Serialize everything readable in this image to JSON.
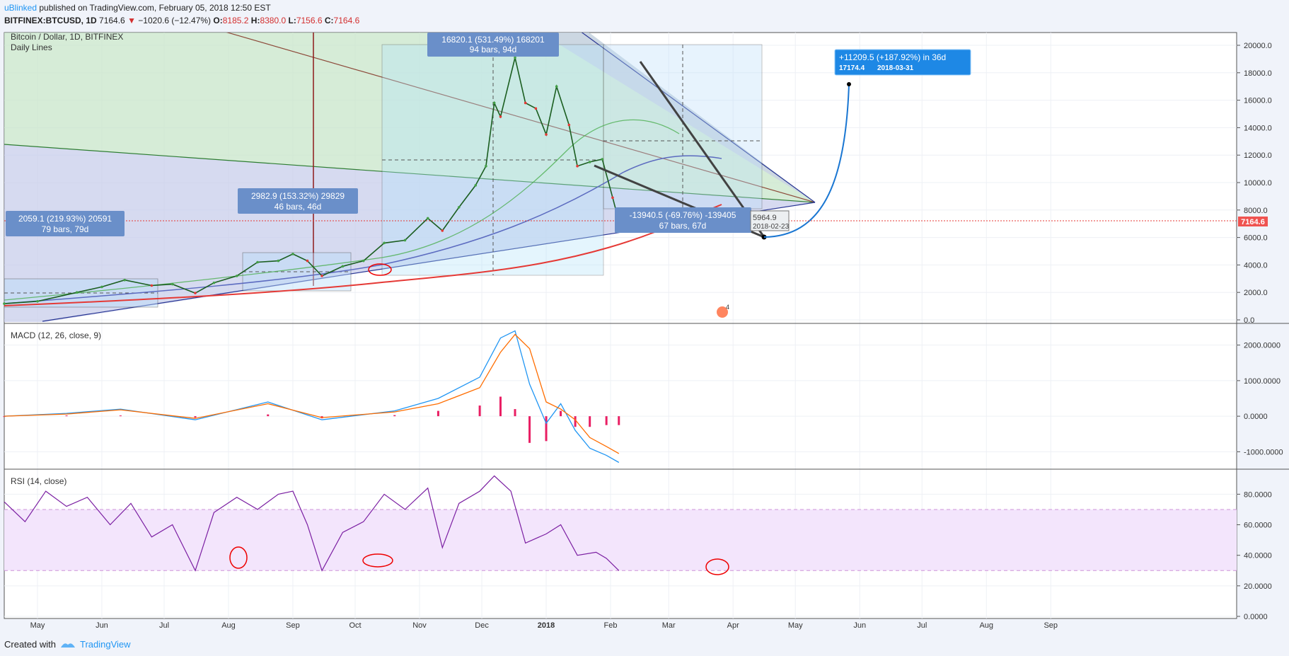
{
  "header": {
    "user": "uBlinked",
    "published": "published on TradingView.com, February 05, 2018 12:50 EST",
    "symbol": "BITFINEX:BTCUSD, 1D",
    "last": "7164.6",
    "arrow": "▼",
    "change": "−1020.6 (−12.47%)",
    "o_label": "O:",
    "o": "8185.2",
    "h_label": "H:",
    "h": "8380.0",
    "l_label": "L:",
    "l": "7156.6",
    "c_label": "C:",
    "c": "7164.6"
  },
  "legend": {
    "title": "Bitcoin / Dollar, 1D, BITFINEX",
    "subtitle": "Daily Lines"
  },
  "footer": {
    "created_with": "Created with",
    "brand": "TradingView"
  },
  "colors": {
    "price_line": "#e53935",
    "macd": "#2196f3",
    "signal": "#ff6d00",
    "hist": "#e91e63",
    "rsi": "#7b1fa2",
    "rsi_band": "#f3e5fc",
    "fan_green": "#c8e6c9",
    "fan_blue": "#c5cae9",
    "label_box": "#6a8fc9",
    "projection": "#1976d2"
  },
  "chart_data": [
    {
      "type": "line",
      "name": "price",
      "ylim": [
        0,
        20000
      ],
      "y_ticks": [
        "20000.0",
        "18000.0",
        "16000.0",
        "14000.0",
        "12000.0",
        "10000.0",
        "8000.0",
        "6000.0",
        "4000.0",
        "2000.0",
        "0.0"
      ],
      "x_ticks": [
        "May",
        "Jun",
        "Jul",
        "Aug",
        "Sep",
        "Oct",
        "Nov",
        "Dec",
        "2018",
        "Feb",
        "Mar",
        "Apr",
        "May",
        "Jun",
        "Jul",
        "Aug",
        "Sep"
      ],
      "price_axis_label": "7164.6",
      "x": [
        "2017-04-15",
        "2017-05-01",
        "2017-05-20",
        "2017-06-01",
        "2017-06-12",
        "2017-06-25",
        "2017-07-05",
        "2017-07-16",
        "2017-07-25",
        "2017-08-05",
        "2017-08-15",
        "2017-08-25",
        "2017-09-01",
        "2017-09-08",
        "2017-09-15",
        "2017-09-25",
        "2017-10-05",
        "2017-10-15",
        "2017-10-25",
        "2017-11-05",
        "2017-11-12",
        "2017-11-20",
        "2017-11-28",
        "2017-12-03",
        "2017-12-07",
        "2017-12-10",
        "2017-12-17",
        "2017-12-22",
        "2017-12-27",
        "2018-01-01",
        "2018-01-06",
        "2018-01-12",
        "2018-01-16",
        "2018-01-22",
        "2018-01-28",
        "2018-02-02",
        "2018-02-05"
      ],
      "values": [
        1180,
        1350,
        2000,
        2400,
        2900,
        2500,
        2600,
        1950,
        2700,
        3200,
        4200,
        4300,
        4800,
        4300,
        3200,
        3900,
        4300,
        5600,
        5800,
        7400,
        6500,
        8200,
        9800,
        11200,
        15800,
        14800,
        19100,
        15800,
        15400,
        13500,
        17000,
        14200,
        11200,
        11500,
        11700,
        8900,
        7164.6
      ],
      "annotations": [
        {
          "text": "2059.1 (219.93%) 20591",
          "sub": "79 bars, 79d"
        },
        {
          "text": "2982.9 (153.32%) 29829",
          "sub": "46 bars, 46d"
        },
        {
          "text": "16820.1 (531.49%) 168201",
          "sub": "94 bars, 94d"
        },
        {
          "text": "-13940.5 (-69.76%) -139405",
          "sub": "67 bars, 67d"
        },
        {
          "text": "+11209.5 (+187.92%) in 36d",
          "sub": "17174.4",
          "sub_date": "2018-03-31"
        }
      ],
      "target_point": {
        "price": "5964.9",
        "date": "2018-02-23"
      },
      "marker": "4"
    },
    {
      "type": "line",
      "name": "MACD (12, 26, close, 9)",
      "y_ticks": [
        "2000.0000",
        "1000.0000",
        "0.0000",
        "-1000.0000"
      ],
      "ylim": [
        -1450,
        2550
      ],
      "x": [
        "2017-04-15",
        "2017-05-15",
        "2017-06-10",
        "2017-07-16",
        "2017-08-20",
        "2017-09-15",
        "2017-10-20",
        "2017-11-10",
        "2017-11-30",
        "2017-12-10",
        "2017-12-17",
        "2017-12-24",
        "2018-01-01",
        "2018-01-08",
        "2018-01-15",
        "2018-01-22",
        "2018-01-30",
        "2018-02-05"
      ],
      "series": [
        {
          "values": [
            0,
            80,
            200,
            -100,
            400,
            -100,
            150,
            500,
            1100,
            2200,
            2400,
            900,
            -200,
            350,
            -400,
            -900,
            -1100,
            -1300
          ]
        },
        {
          "values": [
            0,
            60,
            180,
            -60,
            350,
            -40,
            120,
            350,
            800,
            1800,
            2300,
            1900,
            400,
            200,
            -100,
            -600,
            -850,
            -1050
          ]
        }
      ],
      "histogram": [
        0,
        20,
        20,
        -40,
        50,
        -60,
        30,
        150,
        300,
        550,
        200,
        -750,
        -700,
        150,
        -300,
        -300,
        -250,
        -250
      ]
    },
    {
      "type": "line",
      "name": "RSI (14, close)",
      "y_ticks": [
        "80.0000",
        "60.0000",
        "40.0000",
        "20.0000",
        "0.0000"
      ],
      "ylim": [
        0,
        95
      ],
      "bands": [
        30,
        70
      ],
      "x": [
        "2017-04-15",
        "2017-04-25",
        "2017-05-05",
        "2017-05-15",
        "2017-05-25",
        "2017-06-05",
        "2017-06-15",
        "2017-06-25",
        "2017-07-05",
        "2017-07-16",
        "2017-07-25",
        "2017-08-05",
        "2017-08-15",
        "2017-08-25",
        "2017-09-01",
        "2017-09-08",
        "2017-09-15",
        "2017-09-25",
        "2017-10-05",
        "2017-10-15",
        "2017-10-25",
        "2017-11-05",
        "2017-11-12",
        "2017-11-20",
        "2017-11-30",
        "2017-12-07",
        "2017-12-15",
        "2017-12-22",
        "2018-01-01",
        "2018-01-08",
        "2018-01-16",
        "2018-01-25",
        "2018-01-30",
        "2018-02-05"
      ],
      "values": [
        75,
        62,
        82,
        72,
        78,
        60,
        74,
        52,
        60,
        30,
        68,
        78,
        70,
        80,
        82,
        60,
        30,
        55,
        62,
        80,
        70,
        84,
        45,
        74,
        82,
        92,
        82,
        48,
        54,
        60,
        40,
        42,
        38,
        30
      ]
    }
  ]
}
